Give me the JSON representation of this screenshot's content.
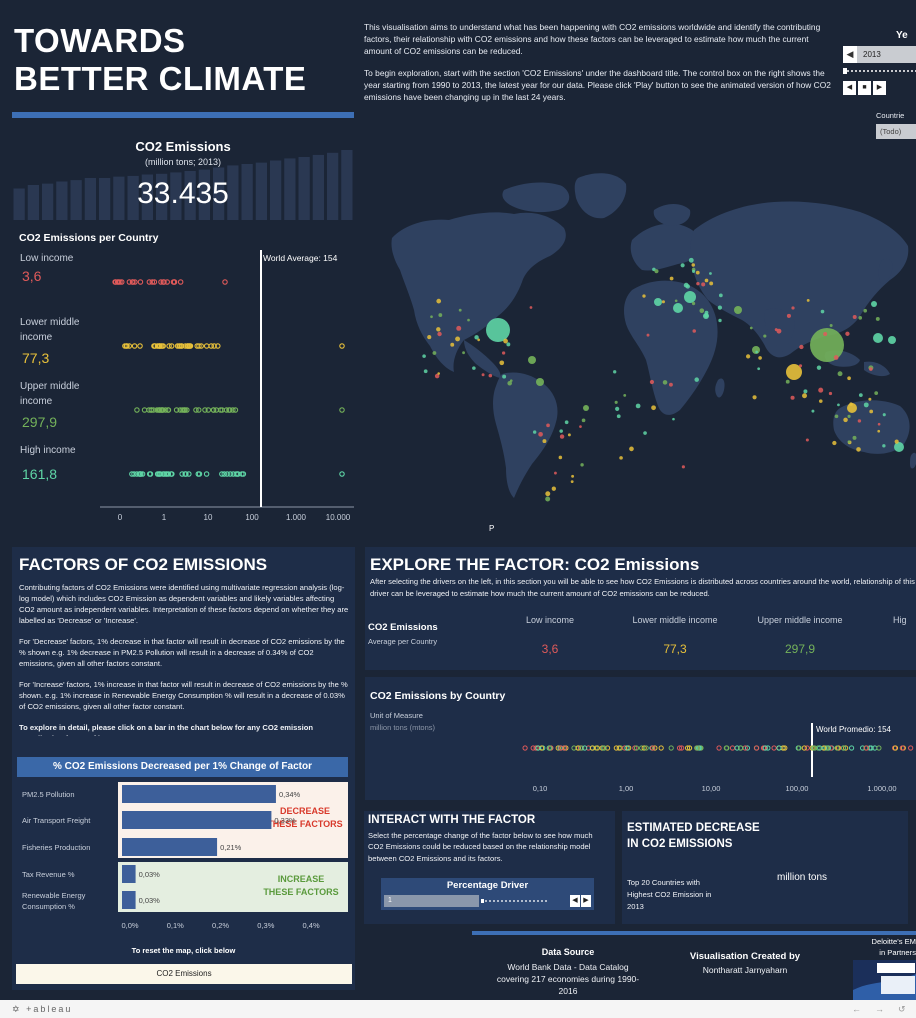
{
  "dashboard": {
    "title_line1": "TOWARDS",
    "title_line2": "BETTER CLIMATE",
    "intro_p1": "This visualisation aims to understand what has been happening with CO2 emissions worldwide and identify the contributing factors, their relationship with CO2 emissions and how these factors can be leveraged to estimate how much the current amount of CO2 emissions can be reduced.",
    "intro_p2": "To begin exploration, start with the section 'CO2 Emissions' under the dashboard title. The control box on the right shows the year starting from 1990 to 2013, the latest year for our data. Please click 'Play' button to see the animated version of how CO2 emissions have been changing up in the last 24 years."
  },
  "controls": {
    "year_label": "Ye",
    "year_value": "2013",
    "countries_label": "Countrie",
    "countries_value": "(Todo)"
  },
  "summary": {
    "title": "CO2 Emissions",
    "subtitle": "(million tons; 2013)",
    "value": "33.435",
    "history_levels": [
      0.45,
      0.5,
      0.52,
      0.55,
      0.57,
      0.6,
      0.6,
      0.62,
      0.63,
      0.65,
      0.66,
      0.68,
      0.7,
      0.72,
      0.75,
      0.78,
      0.8,
      0.82,
      0.85,
      0.88,
      0.9,
      0.93,
      0.96,
      1.0
    ]
  },
  "per_country": {
    "title": "CO2 Emissions per Country",
    "world_average_label": "World Average: 154",
    "world_average": 154,
    "x_ticks": [
      "0",
      "1",
      "10",
      "100",
      "1.000",
      "10.000"
    ],
    "groups": [
      {
        "label": "Low income",
        "value": "3,6",
        "color": "#e05a5a"
      },
      {
        "label": "Lower middle income",
        "value": "77,3",
        "color": "#e8c13a"
      },
      {
        "label": "Upper middle income",
        "value": "297,9",
        "color": "#74b25a"
      },
      {
        "label": "High income",
        "value": "161,8",
        "color": "#5fd6a6"
      }
    ]
  },
  "map": {
    "label": "P"
  },
  "factors": {
    "title": "FACTORS OF CO2 EMISSIONS",
    "p1": "Contributing factors of CO2 Emissions were identified using multivariate regression analysis (log-log model) which includes CO2 Emission as dependent variables and likely variables affecting CO2 amount as independent variables. Interpretation of these factors depend on whether they are labelled as 'Decrease' or 'Increase'.",
    "p2": "For 'Decrease' factors, 1% decrease in that factor will result in decrease of CO2 emissions by the % shown e.g. 1% decrease in PM2.5 Pollution will result in a decrease of 0.34% of CO2 emissions, given all other factors constant.",
    "p3": "For 'Increase' factors, 1% increase in that factor will result in decrease of CO2 emissions by the % shown. e.g. 1% increase in Renewable Energy Consumption % will result in a decrease of 0.03% of CO2 emissions, given all other factor constant.",
    "p4": "To explore in detail, please click on a bar in the chart below for any CO2 emission contributing factor of interest.",
    "chart_title": "% CO2 Emissions Decreased per 1% Change of Factor",
    "decrease_label": "DECREASE THESE FACTORS",
    "increase_label": "INCREASE THESE FACTORS",
    "reset_text": "To reset the map, click below",
    "reset_button": "CO2 Emissions"
  },
  "chart_data": {
    "type": "bar",
    "title": "% CO2 Emissions Decreased per 1% Change of Factor",
    "orientation": "horizontal",
    "categories": [
      "PM2.5 Pollution",
      "Air Transport Freight",
      "Fisheries Production",
      "Tax Revenue %",
      "Renewable Energy Consumption %"
    ],
    "values": [
      0.34,
      0.33,
      0.21,
      0.03,
      0.03
    ],
    "value_labels": [
      "0,34%",
      "0,33%",
      "0,21%",
      "0,03%",
      "0,03%"
    ],
    "groups": [
      "decrease",
      "decrease",
      "decrease",
      "increase",
      "increase"
    ],
    "x_ticks": [
      "0,0%",
      "0,1%",
      "0,2%",
      "0,3%",
      "0,4%"
    ],
    "xlim": [
      0,
      0.4
    ],
    "bar_color": "#3d5f9a"
  },
  "explore": {
    "title": "EXPLORE THE FACTOR: CO2 Emissions",
    "text": "After selecting the drivers on the left, in this section you will be able to see how CO2 Emissions is distributed across countries around the world, relationship of this driver can be leveraged to estimate how much the current amount of CO2 emissions can be reduced.",
    "label": "CO2 Emissions",
    "sub": "Average per Country",
    "columns": [
      {
        "name": "Low income",
        "value": "3,6",
        "color": "#e05a5a"
      },
      {
        "name": "Lower middle income",
        "value": "77,3",
        "color": "#e8c13a"
      },
      {
        "name": "Upper middle income",
        "value": "297,9",
        "color": "#74b25a"
      },
      {
        "name": "Hig",
        "value": "",
        "color": "#5fd6a6"
      }
    ]
  },
  "by_country": {
    "title": "CO2 Emissions by Country",
    "unit_label": "Unit of Measure",
    "unit_value": "million tons (mtons)",
    "average_label": "World Promedio: 154",
    "x_ticks": [
      "0,10",
      "1,00",
      "10,00",
      "100,00",
      "1.000,00"
    ]
  },
  "interact": {
    "title": "INTERACT WITH THE FACTOR",
    "text": "Select the percentage change of the factor below to see how much CO2 Emissions could be reduced based on the relationship model between CO2 Emissions and its factors.",
    "driver_title": "Percentage Driver",
    "driver_value": "1"
  },
  "estimated": {
    "title": "ESTIMATED DECREASE IN CO2 EMISSIONS",
    "text": "Top 20 Countries with Highest CO2 Emission in 2013",
    "unit": "million tons"
  },
  "footer": {
    "data_source_title": "Data Source",
    "data_source_l1": "World Bank Data - Data Catalog",
    "data_source_l2": "covering 217 economies during 1990-2016",
    "created_title": "Visualisation Created by",
    "created_name": "Nontharatt Jarnyaharn",
    "deloitte_l1": "Deloitte's EM",
    "deloitte_l2": "in Partners",
    "tableau": "+ableau"
  }
}
